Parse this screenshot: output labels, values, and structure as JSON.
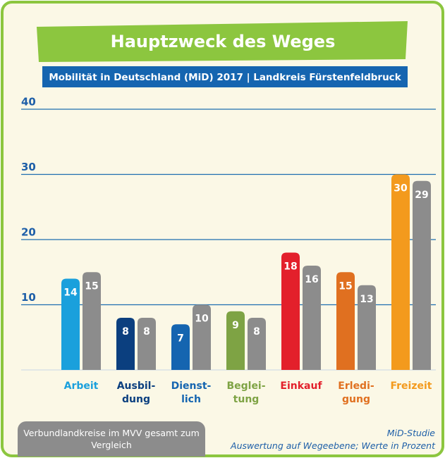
{
  "chart_data": {
    "type": "bar",
    "title": "Hauptzweck des Weges",
    "subtitle": "Mobilität in Deutschland (MiD) 2017 | Landkreis Fürstenfeldbruck",
    "categories": [
      [
        "Arbeit"
      ],
      [
        "Ausbil-",
        "dung"
      ],
      [
        "Dienst-",
        "lich"
      ],
      [
        "Beglei-",
        "tung"
      ],
      [
        "Einkauf"
      ],
      [
        "Erledi-",
        "gung"
      ],
      [
        "Freizeit"
      ]
    ],
    "series": [
      {
        "colors": [
          "#1aa0dc",
          "#0b3f7f",
          "#1565b0",
          "#7ea344",
          "#e3202b",
          "#e07020",
          "#f39a1d"
        ],
        "values": [
          14,
          8,
          7,
          9,
          18,
          15,
          30
        ]
      },
      {
        "name": "Verbundlandkreise im MVV gesamt zum Vergleich",
        "color": "#8c8c8c",
        "values": [
          15,
          8,
          10,
          8,
          16,
          13,
          29
        ]
      }
    ],
    "ylim": [
      0,
      40
    ],
    "yticks": [
      10,
      20,
      30,
      40
    ],
    "grid": true,
    "notes": [
      "MiD-Studie",
      "Auswertung auf Wegeebene; Werte in Prozent"
    ]
  }
}
